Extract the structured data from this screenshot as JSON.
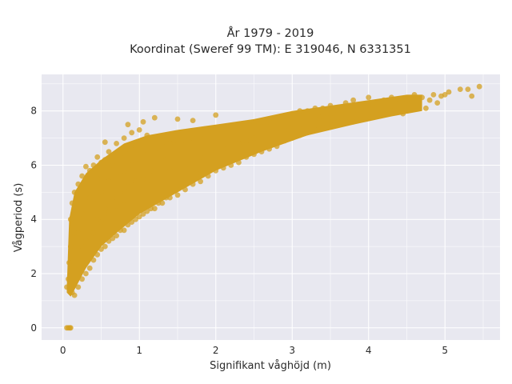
{
  "chart_data": {
    "type": "scatter",
    "title": "År 1979 - 2019",
    "subtitle": "Koordinat (Sweref 99 TM): E 319046, N 6331351",
    "xlabel": "Signifikant våghöjd (m)",
    "ylabel": "Vågperiod (s)",
    "xlim": [
      -0.28,
      5.72
    ],
    "ylim": [
      -0.45,
      9.35
    ],
    "x_ticks": [
      0,
      1,
      2,
      3,
      4,
      5
    ],
    "y_ticks": [
      0,
      2,
      4,
      6,
      8
    ],
    "x_tick_labels": [
      "0",
      "1",
      "2",
      "3",
      "4",
      "5"
    ],
    "y_tick_labels": [
      "0",
      "2",
      "4",
      "6",
      "8"
    ],
    "grid": true,
    "plot_background": "#e8e8f0",
    "grid_color": "#ffffff",
    "marker_color": "#d4a020",
    "series": [
      {
        "points": [
          [
            0.05,
            1.5
          ],
          [
            0.07,
            1.8
          ],
          [
            0.08,
            2.4
          ],
          [
            0.1,
            2.0
          ],
          [
            0.1,
            3.0
          ],
          [
            0.1,
            4.0
          ],
          [
            0.12,
            1.3
          ],
          [
            0.12,
            4.6
          ],
          [
            0.15,
            1.2
          ],
          [
            0.15,
            2.5
          ],
          [
            0.15,
            3.5
          ],
          [
            0.15,
            5.0
          ],
          [
            0.2,
            1.5
          ],
          [
            0.2,
            2.5
          ],
          [
            0.2,
            3.5
          ],
          [
            0.2,
            4.5
          ],
          [
            0.2,
            5.3
          ],
          [
            0.25,
            1.8
          ],
          [
            0.25,
            3.0
          ],
          [
            0.25,
            4.2
          ],
          [
            0.25,
            5.6
          ],
          [
            0.3,
            2.0
          ],
          [
            0.3,
            3.2
          ],
          [
            0.3,
            4.4
          ],
          [
            0.3,
            5.5
          ],
          [
            0.35,
            2.2
          ],
          [
            0.35,
            3.6
          ],
          [
            0.35,
            4.8
          ],
          [
            0.35,
            5.8
          ],
          [
            0.4,
            2.5
          ],
          [
            0.4,
            3.5
          ],
          [
            0.4,
            4.6
          ],
          [
            0.4,
            6.0
          ],
          [
            0.45,
            2.7
          ],
          [
            0.45,
            4.0
          ],
          [
            0.45,
            5.5
          ],
          [
            0.5,
            2.9
          ],
          [
            0.5,
            3.9
          ],
          [
            0.5,
            5.0
          ],
          [
            0.5,
            6.1
          ],
          [
            0.55,
            3.0
          ],
          [
            0.55,
            4.4
          ],
          [
            0.55,
            6.2
          ],
          [
            0.6,
            3.2
          ],
          [
            0.6,
            4.2
          ],
          [
            0.6,
            5.4
          ],
          [
            0.6,
            6.5
          ],
          [
            0.65,
            3.3
          ],
          [
            0.65,
            4.8
          ],
          [
            0.65,
            6.0
          ],
          [
            0.7,
            3.4
          ],
          [
            0.7,
            4.5
          ],
          [
            0.7,
            5.6
          ],
          [
            0.7,
            6.8
          ],
          [
            0.75,
            3.6
          ],
          [
            0.75,
            5.0
          ],
          [
            0.75,
            6.3
          ],
          [
            0.8,
            3.6
          ],
          [
            0.8,
            4.7
          ],
          [
            0.8,
            5.8
          ],
          [
            0.8,
            7.0
          ],
          [
            0.85,
            3.8
          ],
          [
            0.85,
            5.2
          ],
          [
            0.85,
            6.6
          ],
          [
            0.9,
            3.9
          ],
          [
            0.9,
            4.9
          ],
          [
            0.9,
            6.0
          ],
          [
            0.9,
            7.2
          ],
          [
            0.95,
            4.0
          ],
          [
            0.95,
            5.4
          ],
          [
            0.95,
            6.7
          ],
          [
            1.0,
            4.1
          ],
          [
            1.0,
            5.1
          ],
          [
            1.0,
            6.2
          ],
          [
            1.0,
            7.3
          ],
          [
            1.05,
            4.2
          ],
          [
            1.05,
            5.5
          ],
          [
            1.1,
            4.3
          ],
          [
            1.1,
            5.3
          ],
          [
            1.1,
            6.4
          ],
          [
            1.1,
            7.1
          ],
          [
            1.15,
            4.4
          ],
          [
            1.15,
            5.8
          ],
          [
            1.2,
            4.4
          ],
          [
            1.2,
            5.4
          ],
          [
            1.2,
            6.5
          ],
          [
            1.25,
            4.6
          ],
          [
            1.25,
            5.9
          ],
          [
            1.3,
            4.6
          ],
          [
            1.3,
            5.6
          ],
          [
            1.3,
            6.7
          ],
          [
            1.35,
            4.8
          ],
          [
            1.35,
            6.2
          ],
          [
            1.4,
            4.8
          ],
          [
            1.4,
            5.8
          ],
          [
            1.4,
            6.8
          ],
          [
            1.5,
            4.9
          ],
          [
            1.5,
            5.9
          ],
          [
            1.5,
            6.9
          ],
          [
            1.55,
            5.2
          ],
          [
            1.55,
            6.4
          ],
          [
            1.6,
            5.1
          ],
          [
            1.6,
            6.0
          ],
          [
            1.6,
            6.9
          ],
          [
            1.7,
            5.3
          ],
          [
            1.7,
            6.2
          ],
          [
            1.7,
            7.0
          ],
          [
            1.75,
            5.7
          ],
          [
            1.8,
            5.4
          ],
          [
            1.8,
            6.3
          ],
          [
            1.8,
            7.1
          ],
          [
            1.9,
            5.6
          ],
          [
            1.9,
            6.4
          ],
          [
            1.9,
            7.2
          ],
          [
            2.0,
            5.8
          ],
          [
            2.0,
            6.5
          ],
          [
            2.0,
            7.3
          ],
          [
            2.1,
            5.9
          ],
          [
            2.1,
            6.6
          ],
          [
            2.1,
            7.2
          ],
          [
            2.2,
            6.0
          ],
          [
            2.2,
            6.7
          ],
          [
            2.2,
            7.3
          ],
          [
            2.3,
            6.1
          ],
          [
            2.3,
            6.8
          ],
          [
            2.3,
            7.4
          ],
          [
            2.4,
            6.3
          ],
          [
            2.4,
            6.9
          ],
          [
            2.4,
            7.5
          ],
          [
            2.5,
            6.4
          ],
          [
            2.5,
            7.0
          ],
          [
            2.5,
            7.5
          ],
          [
            2.6,
            6.5
          ],
          [
            2.6,
            7.1
          ],
          [
            2.6,
            7.6
          ],
          [
            2.7,
            6.6
          ],
          [
            2.7,
            7.2
          ],
          [
            2.7,
            7.6
          ],
          [
            2.8,
            6.7
          ],
          [
            2.8,
            7.2
          ],
          [
            2.8,
            7.7
          ],
          [
            2.9,
            6.9
          ],
          [
            2.9,
            7.3
          ],
          [
            2.9,
            7.8
          ],
          [
            3.0,
            7.0
          ],
          [
            3.0,
            7.4
          ],
          [
            3.0,
            7.9
          ],
          [
            3.1,
            7.1
          ],
          [
            3.1,
            7.5
          ],
          [
            3.1,
            8.0
          ],
          [
            3.2,
            7.2
          ],
          [
            3.2,
            7.6
          ],
          [
            3.2,
            8.0
          ],
          [
            3.3,
            7.3
          ],
          [
            3.3,
            7.7
          ],
          [
            3.3,
            8.1
          ],
          [
            3.4,
            7.4
          ],
          [
            3.4,
            7.8
          ],
          [
            3.4,
            8.1
          ],
          [
            3.5,
            7.5
          ],
          [
            3.5,
            7.9
          ],
          [
            3.5,
            8.2
          ],
          [
            3.6,
            7.6
          ],
          [
            3.6,
            8.0
          ],
          [
            3.7,
            7.7
          ],
          [
            3.7,
            8.0
          ],
          [
            3.7,
            8.3
          ],
          [
            3.8,
            7.6
          ],
          [
            3.8,
            8.0
          ],
          [
            3.8,
            8.4
          ],
          [
            3.9,
            7.7
          ],
          [
            3.9,
            8.1
          ],
          [
            4.0,
            7.8
          ],
          [
            4.0,
            8.2
          ],
          [
            4.0,
            8.5
          ],
          [
            4.1,
            7.9
          ],
          [
            4.1,
            8.3
          ],
          [
            4.2,
            7.9
          ],
          [
            4.2,
            8.4
          ],
          [
            4.3,
            8.0
          ],
          [
            4.3,
            8.5
          ],
          [
            4.35,
            8.1
          ],
          [
            4.4,
            8.3
          ],
          [
            4.45,
            7.9
          ],
          [
            4.5,
            8.4
          ],
          [
            4.55,
            8.1
          ],
          [
            4.6,
            8.6
          ],
          [
            4.65,
            8.2
          ],
          [
            4.7,
            8.5
          ],
          [
            4.75,
            8.1
          ],
          [
            4.8,
            8.4
          ],
          [
            4.85,
            8.6
          ],
          [
            4.9,
            8.3
          ],
          [
            4.95,
            8.55
          ],
          [
            5.0,
            8.6
          ],
          [
            5.05,
            8.7
          ],
          [
            5.2,
            8.8
          ],
          [
            5.3,
            8.8
          ],
          [
            5.35,
            8.55
          ],
          [
            5.45,
            8.9
          ],
          [
            0.05,
            0.0
          ],
          [
            0.07,
            0.0
          ],
          [
            0.09,
            0.0
          ],
          [
            0.1,
            0.0
          ],
          [
            0.85,
            7.5
          ],
          [
            1.05,
            7.6
          ],
          [
            1.2,
            7.75
          ],
          [
            1.5,
            7.7
          ],
          [
            1.7,
            7.65
          ],
          [
            2.0,
            7.85
          ],
          [
            0.45,
            6.3
          ],
          [
            0.3,
            5.95
          ],
          [
            0.55,
            6.85
          ]
        ]
      }
    ]
  }
}
